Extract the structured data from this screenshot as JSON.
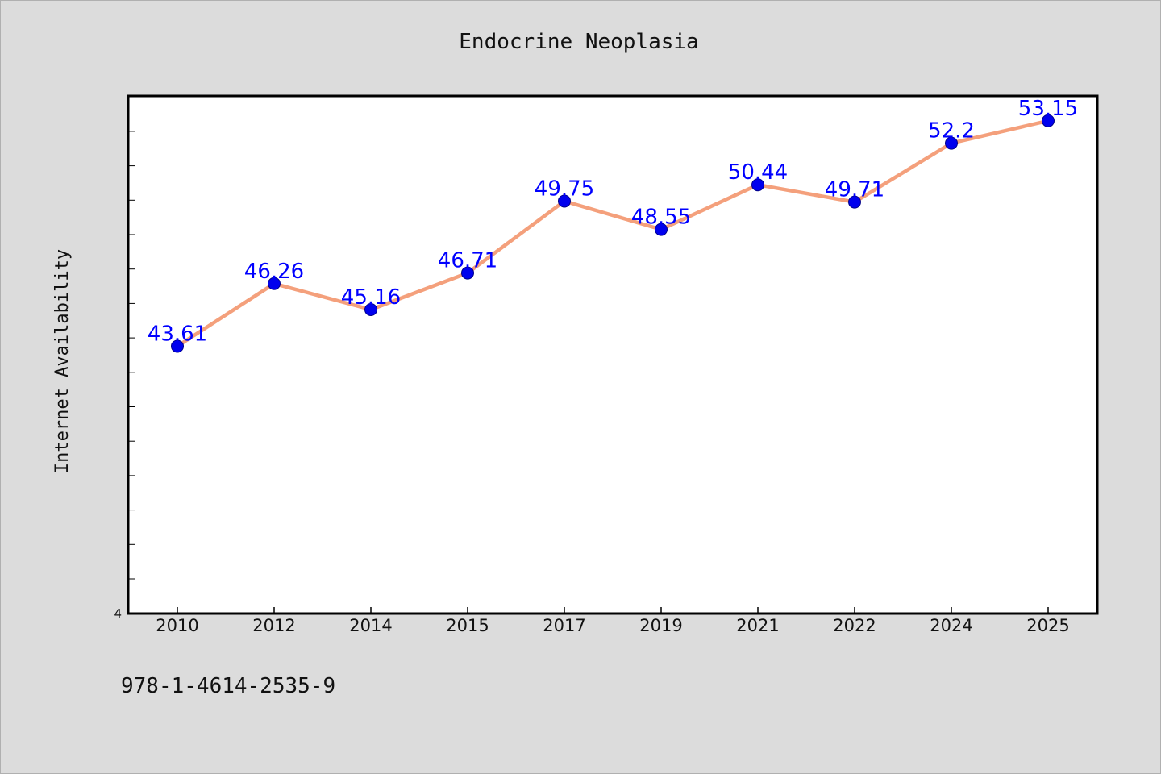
{
  "caption": "978-1-4614-2535-9",
  "chart_data": {
    "type": "line",
    "title": "Endocrine Neoplasia",
    "xlabel": "",
    "ylabel": "Internet Availability",
    "categories": [
      "2010",
      "2012",
      "2014",
      "2015",
      "2017",
      "2019",
      "2021",
      "2022",
      "2024",
      "2025"
    ],
    "series": [
      {
        "values": [
          43.61,
          46.26,
          45.16,
          46.71,
          49.75,
          48.55,
          50.44,
          49.71,
          52.2,
          53.15
        ],
        "labels": [
          "43.61",
          "46.26",
          "45.16",
          "46.71",
          "49.75",
          "48.55",
          "50.44",
          "49.71",
          "52.2",
          "53.15"
        ]
      }
    ],
    "ylim": [
      32.3,
      54.2
    ],
    "y_tick_label": "4",
    "grid": false,
    "legend": "none",
    "colors": {
      "line": "#f4a07c",
      "marker": "#0000ee",
      "data_label": "#0000ff",
      "plot_bg": "#ffffff",
      "page_bg": "#dcdcdc"
    }
  }
}
